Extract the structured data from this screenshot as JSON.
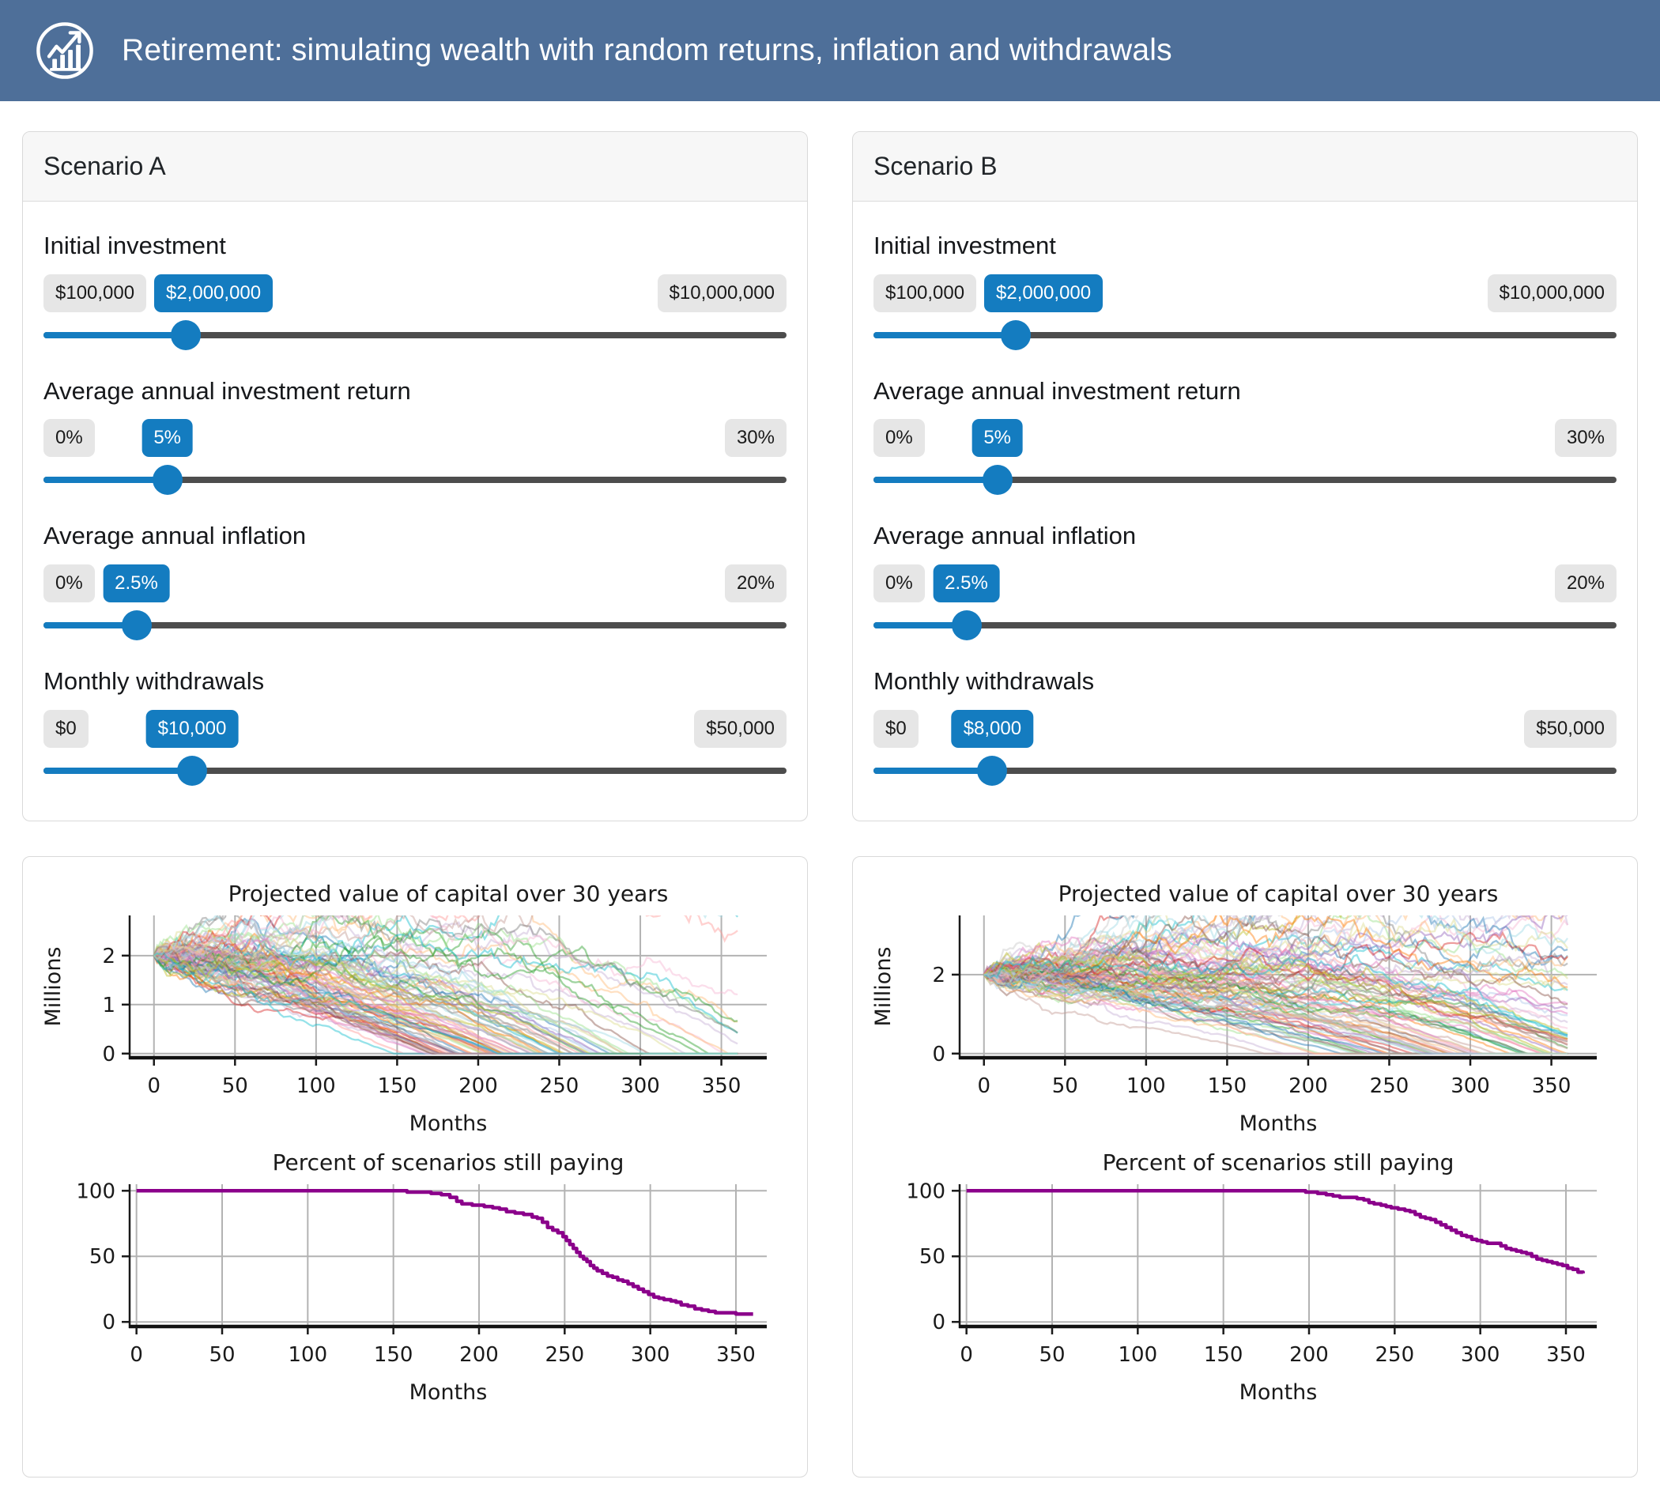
{
  "header": {
    "title": "Retirement: simulating wealth with random returns, inflation and withdrawals",
    "icon": "growth-chart-icon",
    "bg_color": "#4e6f99"
  },
  "colors": {
    "accent_blue": "#147cc0",
    "track_grey": "#4d4d4d",
    "pill_grey_bg": "#e6e6e6",
    "panel_border": "#d9d9d9",
    "panel_header_bg": "#f7f7f7",
    "grid_grey": "#b3b3b3",
    "paying_line": "#8b008b"
  },
  "scenarios": [
    {
      "title": "Scenario A",
      "sliders": [
        {
          "label": "Initial investment",
          "min_label": "$100,000",
          "value_label": "$2,000,000",
          "max_label": "$10,000,000",
          "min": 100000,
          "max": 10000000,
          "value": 2000000
        },
        {
          "label": "Average annual investment return",
          "min_label": "0%",
          "value_label": "5%",
          "max_label": "30%",
          "min": 0,
          "max": 30,
          "value": 5
        },
        {
          "label": "Average annual inflation",
          "min_label": "0%",
          "value_label": "2.5%",
          "max_label": "20%",
          "min": 0,
          "max": 20,
          "value": 2.5
        },
        {
          "label": "Monthly withdrawals",
          "min_label": "$0",
          "value_label": "$10,000",
          "max_label": "$50,000",
          "min": 0,
          "max": 50000,
          "value": 10000
        }
      ]
    },
    {
      "title": "Scenario B",
      "sliders": [
        {
          "label": "Initial investment",
          "min_label": "$100,000",
          "value_label": "$2,000,000",
          "max_label": "$10,000,000",
          "min": 100000,
          "max": 10000000,
          "value": 2000000
        },
        {
          "label": "Average annual investment return",
          "min_label": "0%",
          "value_label": "5%",
          "max_label": "30%",
          "min": 0,
          "max": 30,
          "value": 5
        },
        {
          "label": "Average annual inflation",
          "min_label": "0%",
          "value_label": "2.5%",
          "max_label": "20%",
          "min": 0,
          "max": 20,
          "value": 2.5
        },
        {
          "label": "Monthly withdrawals",
          "min_label": "$0",
          "value_label": "$8,000",
          "max_label": "$50,000",
          "min": 0,
          "max": 50000,
          "value": 8000
        }
      ]
    }
  ],
  "chart_data": [
    {
      "scenario": "A",
      "type": "line",
      "subtype": "monte-carlo-ensemble",
      "title": "Projected value of capital over 30 years",
      "xlabel": "Months",
      "ylabel": "Millions",
      "x_ticks": [
        0,
        50,
        100,
        150,
        200,
        250,
        300,
        350
      ],
      "y_ticks": [
        0,
        1,
        2
      ],
      "x_max": 360,
      "y_max": 2.82,
      "grid": true,
      "n_paths": 100,
      "start_value_millions": 2.0,
      "sim": {
        "initial": 2000000,
        "annual_return": 0.05,
        "annual_inflation": 0.025,
        "monthly_withdrawal": 10000,
        "monthly_volatility": 0.025,
        "months": 360,
        "seed": 7
      },
      "note": "100 random-return paths start at $2M and mostly decline; earliest hit $0 near month 155, a brown outlier peaks near 2.7M at month 185, only a few percent survive to month 360"
    },
    {
      "scenario": "A",
      "type": "line",
      "title": "Percent of scenarios still paying",
      "xlabel": "Months",
      "ylabel": "",
      "x_ticks": [
        0,
        50,
        100,
        150,
        200,
        250,
        300,
        350
      ],
      "y_ticks": [
        0,
        50,
        100
      ],
      "x_max": 360,
      "y_max": 100,
      "grid": true,
      "color": "#8b008b",
      "points": [
        [
          0,
          100
        ],
        [
          152,
          100
        ],
        [
          158,
          99
        ],
        [
          172,
          98
        ],
        [
          178,
          97
        ],
        [
          183,
          95
        ],
        [
          187,
          92
        ],
        [
          190,
          90
        ],
        [
          196,
          89
        ],
        [
          203,
          88
        ],
        [
          208,
          87
        ],
        [
          212,
          86
        ],
        [
          216,
          84
        ],
        [
          221,
          83
        ],
        [
          226,
          82
        ],
        [
          231,
          80
        ],
        [
          234,
          79
        ],
        [
          237,
          76
        ],
        [
          240,
          72
        ],
        [
          243,
          70
        ],
        [
          246,
          68
        ],
        [
          249,
          65
        ],
        [
          251,
          62
        ],
        [
          253,
          59
        ],
        [
          255,
          56
        ],
        [
          257,
          53
        ],
        [
          259,
          50
        ],
        [
          261,
          48
        ],
        [
          263,
          46
        ],
        [
          265,
          43
        ],
        [
          267,
          41
        ],
        [
          269,
          39
        ],
        [
          272,
          37
        ],
        [
          275,
          35
        ],
        [
          278,
          34
        ],
        [
          281,
          32
        ],
        [
          284,
          31
        ],
        [
          287,
          29
        ],
        [
          290,
          27
        ],
        [
          293,
          25
        ],
        [
          296,
          23
        ],
        [
          299,
          21
        ],
        [
          302,
          19
        ],
        [
          305,
          18
        ],
        [
          308,
          17
        ],
        [
          312,
          16
        ],
        [
          315,
          15
        ],
        [
          318,
          13
        ],
        [
          322,
          12
        ],
        [
          326,
          10
        ],
        [
          330,
          9
        ],
        [
          334,
          8
        ],
        [
          338,
          7
        ],
        [
          345,
          7
        ],
        [
          350,
          6
        ],
        [
          360,
          6
        ]
      ]
    },
    {
      "scenario": "B",
      "type": "line",
      "subtype": "monte-carlo-ensemble",
      "title": "Projected value of capital over 30 years",
      "xlabel": "Months",
      "ylabel": "Millions",
      "x_ticks": [
        0,
        50,
        100,
        150,
        200,
        250,
        300,
        350
      ],
      "y_ticks": [
        0,
        2
      ],
      "x_max": 360,
      "y_max": 3.5,
      "grid": true,
      "n_paths": 100,
      "start_value_millions": 2.0,
      "sim": {
        "initial": 2000000,
        "annual_return": 0.05,
        "annual_inflation": 0.025,
        "monthly_withdrawal": 8000,
        "monthly_volatility": 0.025,
        "months": 360,
        "seed": 99
      },
      "note": "100 random-return paths start at $2M, stay flat longer than Scenario A, outliers peak near 3.3M around month 150, roughly a third still paying at month 360"
    },
    {
      "scenario": "B",
      "type": "line",
      "title": "Percent of scenarios still paying",
      "xlabel": "Months",
      "ylabel": "",
      "x_ticks": [
        0,
        50,
        100,
        150,
        200,
        250,
        300,
        350
      ],
      "y_ticks": [
        0,
        50,
        100
      ],
      "x_max": 360,
      "y_max": 100,
      "grid": true,
      "color": "#8b008b",
      "points": [
        [
          0,
          100
        ],
        [
          192,
          100
        ],
        [
          198,
          99
        ],
        [
          205,
          98
        ],
        [
          210,
          97
        ],
        [
          214,
          96
        ],
        [
          218,
          95
        ],
        [
          224,
          95
        ],
        [
          228,
          94
        ],
        [
          232,
          93
        ],
        [
          235,
          91
        ],
        [
          238,
          90
        ],
        [
          242,
          89
        ],
        [
          245,
          88
        ],
        [
          248,
          87
        ],
        [
          252,
          86
        ],
        [
          256,
          85
        ],
        [
          259,
          84
        ],
        [
          262,
          82
        ],
        [
          265,
          80
        ],
        [
          268,
          79
        ],
        [
          271,
          78
        ],
        [
          274,
          76
        ],
        [
          277,
          74
        ],
        [
          280,
          72
        ],
        [
          283,
          70
        ],
        [
          286,
          68
        ],
        [
          289,
          66
        ],
        [
          292,
          65
        ],
        [
          295,
          63
        ],
        [
          298,
          62
        ],
        [
          301,
          61
        ],
        [
          304,
          60
        ],
        [
          309,
          60
        ],
        [
          312,
          58
        ],
        [
          315,
          56
        ],
        [
          318,
          55
        ],
        [
          321,
          54
        ],
        [
          324,
          53
        ],
        [
          327,
          52
        ],
        [
          330,
          50
        ],
        [
          333,
          48
        ],
        [
          336,
          47
        ],
        [
          339,
          46
        ],
        [
          342,
          45
        ],
        [
          345,
          44
        ],
        [
          348,
          43
        ],
        [
          351,
          41
        ],
        [
          354,
          40
        ],
        [
          357,
          38
        ],
        [
          360,
          37
        ]
      ]
    }
  ]
}
